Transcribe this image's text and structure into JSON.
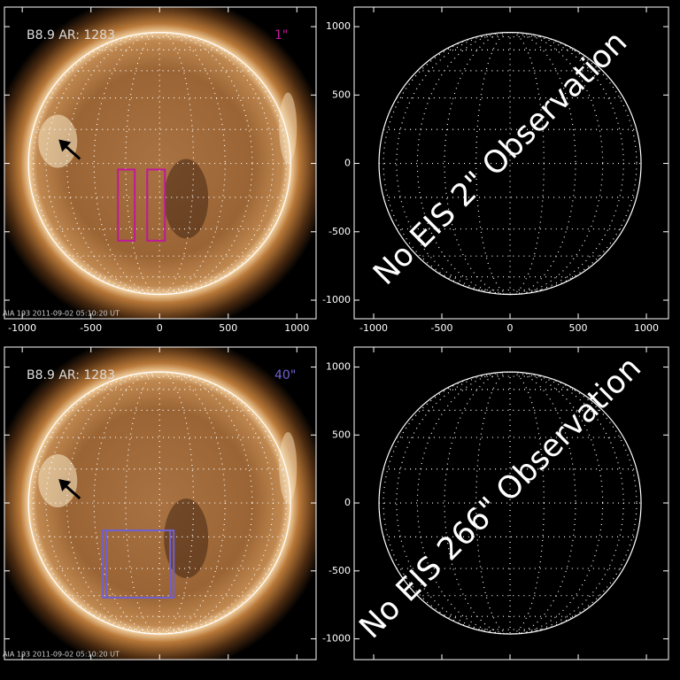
{
  "panels": [
    {
      "label": "B8.9 AR: 1283",
      "scale_label": "1\"",
      "footer": "AIA 193  2011-09-02 05:10:20 UT",
      "xlim": [
        -1130,
        1140
      ],
      "ylim": [
        -1136,
        1143
      ],
      "xticks": [
        -1000,
        -500,
        0,
        500,
        1000
      ],
      "yticks": [
        -1000,
        -500,
        0,
        500,
        1000
      ],
      "box_color": "#c0189a",
      "boxes": [
        {
          "x": [
            -303,
            -181
          ],
          "y": [
            -565,
            -45
          ]
        },
        {
          "x": [
            -90,
            39
          ],
          "y": [
            -565,
            -45
          ]
        }
      ]
    },
    {
      "message": "No EIS 2\" Observation",
      "xlim": [
        -1143,
        1162
      ],
      "ylim": [
        -1136,
        1143
      ],
      "xticks": [
        -1000,
        -500,
        0,
        500,
        1000
      ],
      "yticks": [
        -1000,
        -500,
        0,
        500,
        1000
      ]
    },
    {
      "label": "B8.9 AR: 1283",
      "scale_label": "40\"",
      "footer": "AIA 193  2011-09-02 05:10:20 UT",
      "xlim": [
        -1130,
        1140
      ],
      "ylim": [
        -1153,
        1147
      ],
      "xticks": [
        -1000,
        -500,
        0,
        500,
        1000
      ],
      "yticks": [
        -1000,
        -500,
        0,
        500,
        1000
      ],
      "box_color": "#7060d0",
      "boxes": [
        {
          "x": [
            -413,
            77
          ],
          "y": [
            -697,
            -202
          ]
        },
        {
          "x": [
            -387,
            103
          ],
          "y": [
            -697,
            -202
          ]
        }
      ]
    },
    {
      "message": "No EIS 266\" Observation",
      "xlim": [
        -1143,
        1162
      ],
      "ylim": [
        -1153,
        1147
      ],
      "xticks": [
        -1000,
        -500,
        0,
        500,
        1000
      ],
      "yticks": [
        -1000,
        -500,
        0,
        500,
        1000
      ]
    }
  ]
}
